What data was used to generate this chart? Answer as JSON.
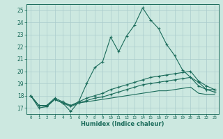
{
  "xlabel": "Humidex (Indice chaleur)",
  "xlim": [
    -0.5,
    23.5
  ],
  "ylim": [
    16.5,
    25.5
  ],
  "yticks": [
    17,
    18,
    19,
    20,
    21,
    22,
    23,
    24,
    25
  ],
  "xticks": [
    0,
    1,
    2,
    3,
    4,
    5,
    6,
    7,
    8,
    9,
    10,
    11,
    12,
    13,
    14,
    15,
    16,
    17,
    18,
    19,
    20,
    21,
    22,
    23
  ],
  "bg_color": "#cce8e0",
  "grid_color": "#aacccc",
  "line_color": "#1a6b5a",
  "series": [
    {
      "x": [
        0,
        1,
        2,
        3,
        4,
        5,
        6,
        7,
        8,
        9,
        10,
        11,
        12,
        13,
        14,
        15,
        16,
        17,
        18,
        19,
        20,
        21,
        22,
        23
      ],
      "y": [
        18,
        17,
        17.1,
        17.7,
        17.4,
        16.7,
        17.5,
        19.0,
        20.3,
        20.8,
        22.8,
        21.6,
        22.9,
        23.8,
        25.2,
        24.2,
        23.5,
        22.2,
        21.3,
        20.1,
        19.5,
        19.1,
        18.5,
        18.5
      ],
      "marker": "+"
    },
    {
      "x": [
        0,
        1,
        2,
        3,
        4,
        5,
        6,
        7,
        8,
        9,
        10,
        11,
        12,
        13,
        14,
        15,
        16,
        17,
        18,
        19,
        20,
        21,
        22,
        23
      ],
      "y": [
        18,
        17.2,
        17.2,
        17.8,
        17.5,
        17.2,
        17.5,
        17.8,
        18.0,
        18.2,
        18.5,
        18.7,
        18.9,
        19.1,
        19.3,
        19.5,
        19.6,
        19.7,
        19.8,
        19.9,
        20.0,
        19.2,
        18.8,
        18.5
      ],
      "marker": "+"
    },
    {
      "x": [
        0,
        1,
        2,
        3,
        4,
        5,
        6,
        7,
        8,
        9,
        10,
        11,
        12,
        13,
        14,
        15,
        16,
        17,
        18,
        19,
        20,
        21,
        22,
        23
      ],
      "y": [
        18,
        17.2,
        17.2,
        17.7,
        17.4,
        17.2,
        17.4,
        17.6,
        17.8,
        17.9,
        18.1,
        18.3,
        18.5,
        18.7,
        18.9,
        19.0,
        19.1,
        19.2,
        19.3,
        19.4,
        19.5,
        18.8,
        18.5,
        18.3
      ],
      "marker": "+"
    },
    {
      "x": [
        0,
        1,
        2,
        3,
        4,
        5,
        6,
        7,
        8,
        9,
        10,
        11,
        12,
        13,
        14,
        15,
        16,
        17,
        18,
        19,
        20,
        21,
        22,
        23
      ],
      "y": [
        18,
        17.2,
        17.1,
        17.7,
        17.4,
        17.1,
        17.4,
        17.5,
        17.6,
        17.7,
        17.8,
        17.9,
        18.0,
        18.1,
        18.2,
        18.3,
        18.4,
        18.4,
        18.5,
        18.6,
        18.7,
        18.2,
        18.1,
        18.1
      ],
      "marker": null
    }
  ]
}
